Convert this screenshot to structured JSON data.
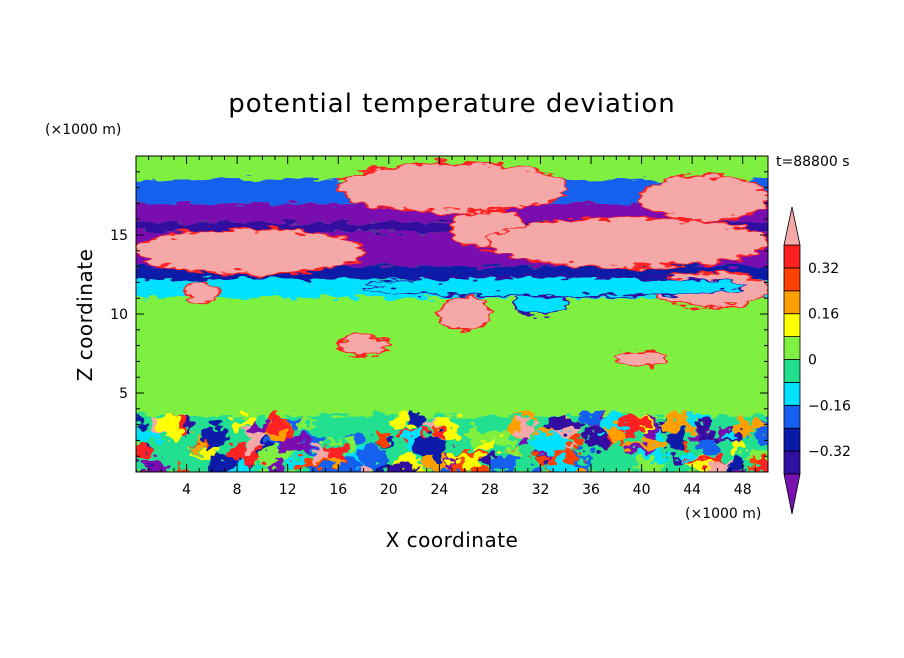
{
  "chart_data": {
    "type": "heatmap",
    "title": "potential temperature deviation",
    "xlabel": "X coordinate",
    "ylabel": "Z coordinate",
    "x_unit": "(×1000 m)",
    "y_unit": "(×1000 m)",
    "time_label": "t=88800 s",
    "xlim": [
      0,
      50
    ],
    "ylim": [
      0,
      20
    ],
    "x_ticks": [
      4,
      8,
      12,
      16,
      20,
      24,
      28,
      32,
      36,
      40,
      44,
      48
    ],
    "y_ticks": [
      5,
      10,
      15
    ],
    "colorbar": {
      "tick_values": [
        0.32,
        0.16,
        0,
        -0.16,
        -0.32
      ],
      "tick_labels": [
        "0.32",
        "0.16",
        "0",
        "−0.16",
        "−0.32"
      ],
      "levels": [
        -0.4,
        -0.32,
        -0.24,
        -0.16,
        -0.08,
        0,
        0.08,
        0.16,
        0.24,
        0.32,
        0.4
      ],
      "colors": [
        "#7a10b0",
        "#3010a0",
        "#0a1aa8",
        "#1860f0",
        "#00e0ff",
        "#20e090",
        "#80f040",
        "#ffff00",
        "#ffa000",
        "#ff4000",
        "#ff2020",
        "#f5a8a8"
      ]
    },
    "bands": [
      {
        "z": [
          18.5,
          20.0
        ],
        "value": 0.04
      },
      {
        "z": [
          17.0,
          18.5
        ],
        "value": -0.2
      },
      {
        "z": [
          15.8,
          17.0
        ],
        "value": -0.44
      },
      {
        "z": [
          15.2,
          15.8
        ],
        "value": -0.36
      },
      {
        "z": [
          13.0,
          15.2
        ],
        "value": -0.44
      },
      {
        "z": [
          12.2,
          13.0
        ],
        "value": -0.28
      },
      {
        "z": [
          11.0,
          12.2
        ],
        "value": -0.1
      },
      {
        "z": [
          8.0,
          11.0
        ],
        "value": 0.04
      },
      {
        "z": [
          3.5,
          8.0
        ],
        "value": 0.06
      },
      {
        "z": [
          0.0,
          3.5
        ],
        "value": -0.05
      }
    ],
    "features": [
      {
        "x": [
          16,
          34
        ],
        "z": [
          16.5,
          19.5
        ],
        "value": 0.44
      },
      {
        "x": [
          40,
          50
        ],
        "z": [
          16.0,
          18.7
        ],
        "value": 0.44
      },
      {
        "x": [
          0,
          18
        ],
        "z": [
          12.6,
          15.3
        ],
        "value": 0.44
      },
      {
        "x": [
          25,
          31
        ],
        "z": [
          14.2,
          16.5
        ],
        "value": 0.44
      },
      {
        "x": [
          28,
          50
        ],
        "z": [
          13.0,
          16.0
        ],
        "value": 0.44
      },
      {
        "x": [
          41,
          50
        ],
        "z": [
          10.5,
          12.6
        ],
        "value": 0.44
      },
      {
        "x": [
          4,
          6.5
        ],
        "z": [
          10.8,
          12.0
        ],
        "value": 0.44
      },
      {
        "x": [
          24,
          28
        ],
        "z": [
          9.0,
          11.0
        ],
        "value": 0.44
      },
      {
        "x": [
          16,
          20
        ],
        "z": [
          7.5,
          8.6
        ],
        "value": 0.44
      },
      {
        "x": [
          38,
          42
        ],
        "z": [
          6.8,
          7.6
        ],
        "value": 0.44
      },
      {
        "x": [
          30,
          34
        ],
        "z": [
          10.0,
          11.3
        ],
        "value": -0.1
      },
      {
        "x": [
          18,
          48
        ],
        "z": [
          11.2,
          12.3
        ],
        "value": -0.1
      }
    ]
  }
}
